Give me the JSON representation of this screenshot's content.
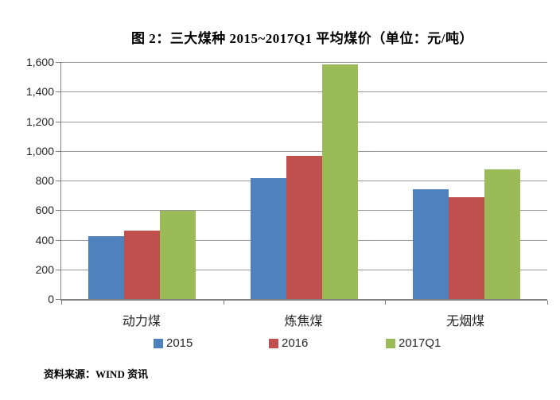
{
  "title": "图 2：三大煤种 2015~2017Q1 平均煤价（单位：元/吨）",
  "source_note": "资料来源：WIND 资讯",
  "chart_data": {
    "type": "bar",
    "title": "图 2：三大煤种 2015~2017Q1 平均煤价（单位：元/吨）",
    "unit": "元/吨",
    "categories": [
      "动力煤",
      "炼焦煤",
      "无烟煤"
    ],
    "series": [
      {
        "name": "2015",
        "color": "#4F81BD",
        "values": [
          425,
          815,
          740
        ]
      },
      {
        "name": "2016",
        "color": "#C0504D",
        "values": [
          460,
          965,
          685
        ]
      },
      {
        "name": "2017Q1",
        "color": "#9BBB59",
        "values": [
          595,
          1585,
          875
        ]
      }
    ],
    "ylim": [
      0,
      1600
    ],
    "ytick_step": 200,
    "ytick_labels": [
      "0",
      "200",
      "400",
      "600",
      "800",
      "1,000",
      "1,200",
      "1,400",
      "1,600"
    ],
    "grid": true,
    "legend_position": "bottom",
    "gridline_color": "#969696",
    "axis_color": "#808080"
  }
}
